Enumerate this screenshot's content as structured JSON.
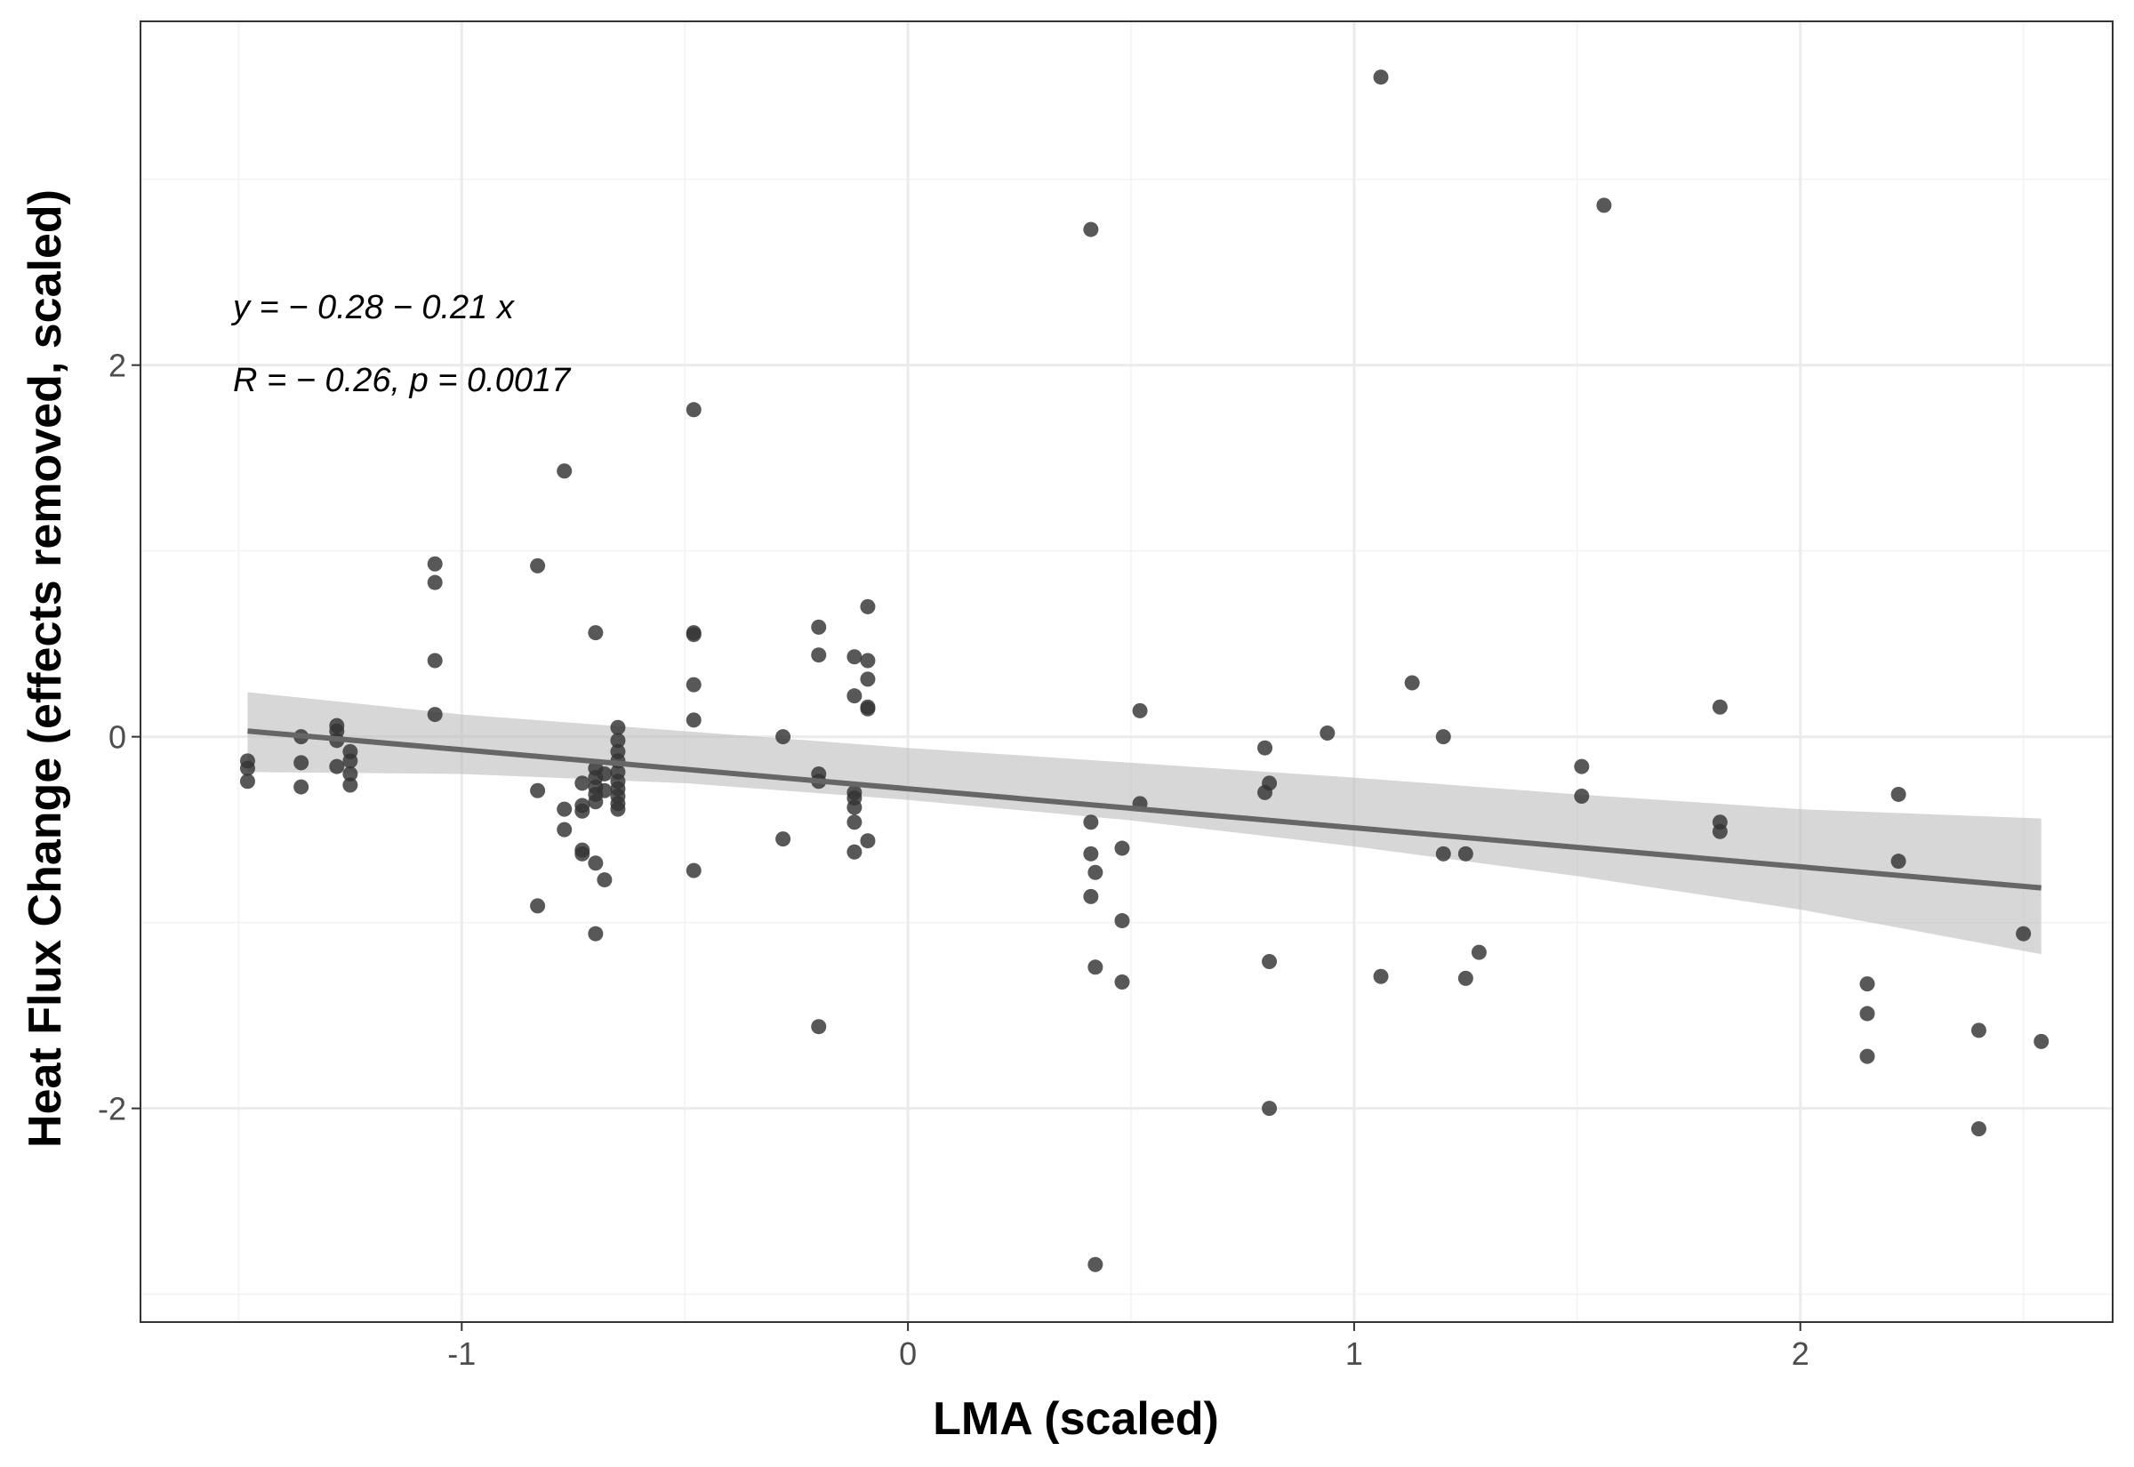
{
  "chart_data": {
    "type": "scatter",
    "title": "",
    "xlabel": "LMA (scaled)",
    "ylabel": "Heat Flux Change (effects removed, scaled)",
    "xlim": [
      -1.72,
      2.7
    ],
    "ylim": [
      -3.15,
      3.85
    ],
    "x_ticks": [
      -1,
      0,
      1,
      2
    ],
    "x_tick_labels": [
      "-1",
      "0",
      "1",
      "2"
    ],
    "y_ticks": [
      -2,
      0,
      2
    ],
    "y_tick_labels": [
      "-2",
      "0",
      "2"
    ],
    "grid": true,
    "theme": "black-and-white",
    "point_color": "#333333",
    "line_color": "#666666",
    "ribbon_color": "#bebebe",
    "annotations": [
      "y = − 0.28 − 0.21 x",
      "R = − 0.26, p = 0.0017"
    ],
    "regression": {
      "intercept": -0.28,
      "slope": -0.21,
      "x_range": [
        -1.48,
        2.54
      ],
      "ci_band": {
        "x": [
          -1.48,
          -1.0,
          -0.5,
          0.0,
          0.5,
          1.0,
          1.5,
          2.0,
          2.54
        ],
        "lower": [
          -0.19,
          -0.2,
          -0.25,
          -0.34,
          -0.45,
          -0.59,
          -0.75,
          -0.93,
          -1.17
        ],
        "upper": [
          0.24,
          0.12,
          0.03,
          -0.06,
          -0.14,
          -0.22,
          -0.31,
          -0.39,
          -0.44
        ]
      }
    },
    "points": [
      {
        "x": -1.48,
        "y": -0.13
      },
      {
        "x": -1.48,
        "y": -0.17
      },
      {
        "x": -1.48,
        "y": -0.24
      },
      {
        "x": -1.36,
        "y": 0.0
      },
      {
        "x": -1.36,
        "y": -0.14
      },
      {
        "x": -1.36,
        "y": -0.27
      },
      {
        "x": -1.28,
        "y": 0.06
      },
      {
        "x": -1.28,
        "y": 0.03
      },
      {
        "x": -1.28,
        "y": -0.02
      },
      {
        "x": -1.28,
        "y": -0.16
      },
      {
        "x": -1.25,
        "y": -0.08
      },
      {
        "x": -1.25,
        "y": -0.13
      },
      {
        "x": -1.25,
        "y": -0.2
      },
      {
        "x": -1.25,
        "y": -0.26
      },
      {
        "x": -1.06,
        "y": 0.93
      },
      {
        "x": -1.06,
        "y": 0.83
      },
      {
        "x": -1.06,
        "y": 0.41
      },
      {
        "x": -1.06,
        "y": 0.12
      },
      {
        "x": -0.83,
        "y": 0.92
      },
      {
        "x": -0.83,
        "y": -0.29
      },
      {
        "x": -0.83,
        "y": -0.91
      },
      {
        "x": -0.77,
        "y": 1.43
      },
      {
        "x": -0.77,
        "y": -0.39
      },
      {
        "x": -0.77,
        "y": -0.5
      },
      {
        "x": -0.73,
        "y": -0.25
      },
      {
        "x": -0.73,
        "y": -0.37
      },
      {
        "x": -0.73,
        "y": -0.4
      },
      {
        "x": -0.73,
        "y": -0.61
      },
      {
        "x": -0.73,
        "y": -0.63
      },
      {
        "x": -0.7,
        "y": 0.56
      },
      {
        "x": -0.7,
        "y": -0.17
      },
      {
        "x": -0.7,
        "y": -0.22
      },
      {
        "x": -0.7,
        "y": -0.27
      },
      {
        "x": -0.7,
        "y": -0.31
      },
      {
        "x": -0.7,
        "y": -0.35
      },
      {
        "x": -0.7,
        "y": -0.68
      },
      {
        "x": -0.7,
        "y": -1.06
      },
      {
        "x": -0.68,
        "y": -0.2
      },
      {
        "x": -0.68,
        "y": -0.29
      },
      {
        "x": -0.68,
        "y": -0.77
      },
      {
        "x": -0.65,
        "y": 0.05
      },
      {
        "x": -0.65,
        "y": -0.02
      },
      {
        "x": -0.65,
        "y": -0.08
      },
      {
        "x": -0.65,
        "y": -0.13
      },
      {
        "x": -0.65,
        "y": -0.19
      },
      {
        "x": -0.65,
        "y": -0.24
      },
      {
        "x": -0.65,
        "y": -0.28
      },
      {
        "x": -0.65,
        "y": -0.32
      },
      {
        "x": -0.65,
        "y": -0.36
      },
      {
        "x": -0.65,
        "y": -0.39
      },
      {
        "x": -0.48,
        "y": 1.76
      },
      {
        "x": -0.48,
        "y": 0.56
      },
      {
        "x": -0.48,
        "y": 0.55
      },
      {
        "x": -0.48,
        "y": 0.28
      },
      {
        "x": -0.48,
        "y": 0.09
      },
      {
        "x": -0.48,
        "y": -0.72
      },
      {
        "x": -0.28,
        "y": 0.0
      },
      {
        "x": -0.28,
        "y": -0.55
      },
      {
        "x": -0.2,
        "y": 0.59
      },
      {
        "x": -0.2,
        "y": 0.44
      },
      {
        "x": -0.2,
        "y": -0.2
      },
      {
        "x": -0.2,
        "y": -0.24
      },
      {
        "x": -0.2,
        "y": -1.56
      },
      {
        "x": -0.12,
        "y": 0.43
      },
      {
        "x": -0.12,
        "y": 0.22
      },
      {
        "x": -0.12,
        "y": -0.3
      },
      {
        "x": -0.12,
        "y": -0.33
      },
      {
        "x": -0.12,
        "y": -0.38
      },
      {
        "x": -0.12,
        "y": -0.46
      },
      {
        "x": -0.12,
        "y": -0.62
      },
      {
        "x": -0.09,
        "y": 0.7
      },
      {
        "x": -0.09,
        "y": 0.41
      },
      {
        "x": -0.09,
        "y": 0.31
      },
      {
        "x": -0.09,
        "y": 0.16
      },
      {
        "x": -0.09,
        "y": 0.15
      },
      {
        "x": -0.09,
        "y": -0.56
      },
      {
        "x": 0.41,
        "y": 2.73
      },
      {
        "x": 0.41,
        "y": -0.46
      },
      {
        "x": 0.41,
        "y": -0.63
      },
      {
        "x": 0.41,
        "y": -0.86
      },
      {
        "x": 0.42,
        "y": -0.73
      },
      {
        "x": 0.42,
        "y": -1.24
      },
      {
        "x": 0.42,
        "y": -2.84
      },
      {
        "x": 0.48,
        "y": -0.6
      },
      {
        "x": 0.48,
        "y": -0.99
      },
      {
        "x": 0.48,
        "y": -1.32
      },
      {
        "x": 0.52,
        "y": 0.14
      },
      {
        "x": 0.52,
        "y": -0.36
      },
      {
        "x": 0.8,
        "y": -0.06
      },
      {
        "x": 0.8,
        "y": -0.3
      },
      {
        "x": 0.81,
        "y": -0.25
      },
      {
        "x": 0.81,
        "y": -1.21
      },
      {
        "x": 0.81,
        "y": -2.0
      },
      {
        "x": 0.94,
        "y": 0.02
      },
      {
        "x": 1.06,
        "y": 3.55
      },
      {
        "x": 1.06,
        "y": -1.29
      },
      {
        "x": 1.13,
        "y": 0.29
      },
      {
        "x": 1.2,
        "y": 0.0
      },
      {
        "x": 1.2,
        "y": -0.63
      },
      {
        "x": 1.25,
        "y": -0.63
      },
      {
        "x": 1.25,
        "y": -1.3
      },
      {
        "x": 1.28,
        "y": -1.16
      },
      {
        "x": 1.51,
        "y": -0.16
      },
      {
        "x": 1.51,
        "y": -0.32
      },
      {
        "x": 1.56,
        "y": 2.86
      },
      {
        "x": 1.82,
        "y": 0.16
      },
      {
        "x": 1.82,
        "y": -0.46
      },
      {
        "x": 1.82,
        "y": -0.51
      },
      {
        "x": 2.15,
        "y": -1.33
      },
      {
        "x": 2.15,
        "y": -1.49
      },
      {
        "x": 2.15,
        "y": -1.72
      },
      {
        "x": 2.22,
        "y": -0.31
      },
      {
        "x": 2.22,
        "y": -0.67
      },
      {
        "x": 2.4,
        "y": -1.58
      },
      {
        "x": 2.4,
        "y": -2.11
      },
      {
        "x": 2.5,
        "y": -1.06
      },
      {
        "x": 2.54,
        "y": -1.64
      }
    ]
  }
}
